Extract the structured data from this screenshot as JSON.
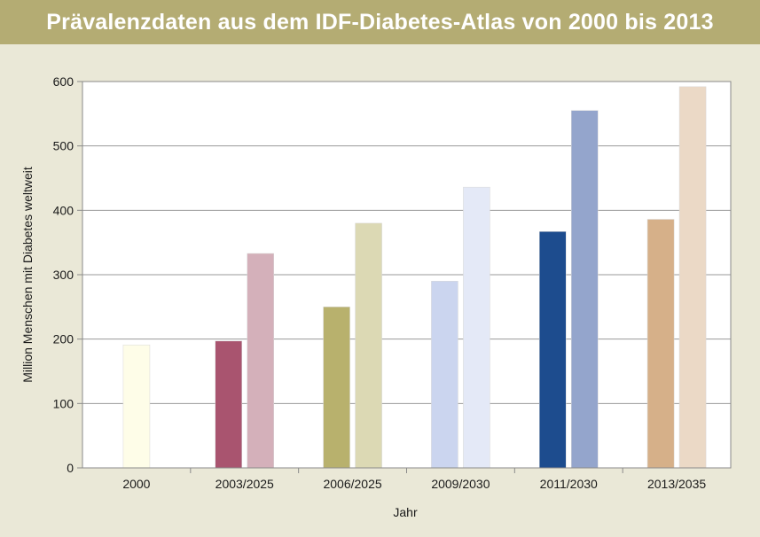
{
  "title": "Prävalenzdaten aus dem IDF-Diabetes-Atlas von 2000 bis 2013",
  "chart_data": {
    "type": "bar",
    "title": "Prävalenzdaten aus dem IDF-Diabetes-Atlas von 2000 bis 2013",
    "xlabel": "Jahr",
    "ylabel": "Million Menschen mit Diabetes weltweit",
    "ylim": [
      0,
      600
    ],
    "yticks": [
      0,
      100,
      200,
      300,
      400,
      500,
      600
    ],
    "grid": true,
    "categories": [
      "2000",
      "2003/2025",
      "2006/2025",
      "2009/2030",
      "2011/2030",
      "2013/2035"
    ],
    "groups": [
      {
        "category": "2000",
        "bars": [
          {
            "value": 191,
            "color": "#fefde8"
          }
        ]
      },
      {
        "category": "2003/2025",
        "bars": [
          {
            "value": 197,
            "color": "#a9546f"
          },
          {
            "value": 333,
            "color": "#d4b0ba"
          }
        ]
      },
      {
        "category": "2006/2025",
        "bars": [
          {
            "value": 250,
            "color": "#b8b16d"
          },
          {
            "value": 380,
            "color": "#dcd9b4"
          }
        ]
      },
      {
        "category": "2009/2030",
        "bars": [
          {
            "value": 290,
            "color": "#cbd5ef"
          },
          {
            "value": 436,
            "color": "#e4e9f7"
          }
        ]
      },
      {
        "category": "2011/2030",
        "bars": [
          {
            "value": 367,
            "color": "#1d4c8e"
          },
          {
            "value": 555,
            "color": "#94a5cc"
          }
        ]
      },
      {
        "category": "2013/2035",
        "bars": [
          {
            "value": 386,
            "color": "#d6b089"
          },
          {
            "value": 592,
            "color": "#ebd9c6"
          }
        ]
      }
    ]
  }
}
